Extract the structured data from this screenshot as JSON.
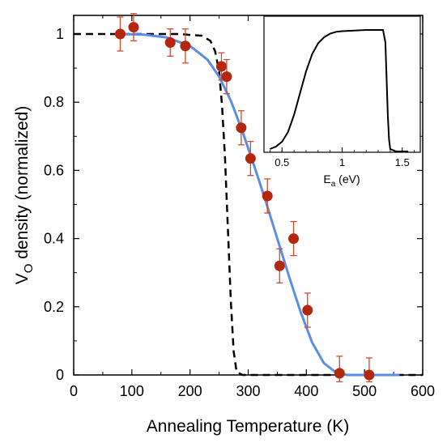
{
  "chart_data": [
    {
      "type": "scatter",
      "xlabel": "Annealing Temperature (K)",
      "ylabel": "density (normalized)",
      "ylabel_symbol": "V",
      "ylabel_subscript": "O",
      "xlim": [
        0,
        600
      ],
      "ylim": [
        0,
        1.05
      ],
      "xticks": [
        "0",
        "100",
        "200",
        "300",
        "400",
        "500",
        "600"
      ],
      "yticks": [
        "0",
        "0.2",
        "0.4",
        "0.6",
        "0.8",
        "1"
      ],
      "xtick_values": [
        0,
        100,
        200,
        300,
        400,
        500,
        600
      ],
      "ytick_values": [
        0,
        0.2,
        0.4,
        0.6,
        0.8,
        1
      ],
      "grid": false,
      "colors": {
        "points": "#b5260f",
        "error_bars": "#d24a2e",
        "fit_curve": "#5b8ee6",
        "dashed_curve": "#000000"
      },
      "points": [
        {
          "x": 80,
          "y": 1.0,
          "err": 0.05
        },
        {
          "x": 103,
          "y": 1.02,
          "err": 0.04
        },
        {
          "x": 166,
          "y": 0.975,
          "err": 0.04
        },
        {
          "x": 192,
          "y": 0.965,
          "err": 0.05
        },
        {
          "x": 254,
          "y": 0.905,
          "err": 0.04
        },
        {
          "x": 263,
          "y": 0.875,
          "err": 0.05
        },
        {
          "x": 288,
          "y": 0.725,
          "err": 0.05
        },
        {
          "x": 304,
          "y": 0.635,
          "err": 0.05
        },
        {
          "x": 333,
          "y": 0.525,
          "err": 0.05
        },
        {
          "x": 354,
          "y": 0.32,
          "err": 0.05
        },
        {
          "x": 378,
          "y": 0.4,
          "err": 0.05
        },
        {
          "x": 402,
          "y": 0.19,
          "err": 0.05
        },
        {
          "x": 457,
          "y": 0.005,
          "err": 0.05
        },
        {
          "x": 508,
          "y": 0.0,
          "err": 0.05
        }
      ],
      "fit_curve": {
        "x": [
          80,
          120,
          160,
          200,
          230,
          250,
          270,
          290,
          310,
          330,
          350,
          370,
          390,
          410,
          430,
          450,
          470,
          500,
          530,
          560
        ],
        "y": [
          1.0,
          0.998,
          0.99,
          0.965,
          0.925,
          0.875,
          0.805,
          0.715,
          0.615,
          0.51,
          0.4,
          0.29,
          0.185,
          0.095,
          0.035,
          0.008,
          0.0,
          0.0,
          0.0,
          0.0
        ]
      },
      "dashed_curve": {
        "x": [
          0,
          180,
          220,
          235,
          243,
          250,
          255,
          260,
          265,
          270,
          275,
          280,
          290,
          400,
          600
        ],
        "y": [
          1.0,
          1.0,
          0.995,
          0.98,
          0.95,
          0.89,
          0.79,
          0.64,
          0.43,
          0.22,
          0.07,
          0.01,
          0.0,
          0.0,
          0.0
        ]
      }
    },
    {
      "type": "line",
      "xlabel_symbol": "E",
      "xlabel_subscript": "a",
      "xlabel_unit": "(eV)",
      "xlim": [
        0.35,
        1.65
      ],
      "ylim": [
        0,
        1.05
      ],
      "xticks": [
        "0.5",
        "1",
        "1.5"
      ],
      "xtick_values": [
        0.5,
        1.0,
        1.5
      ],
      "grid": false,
      "colors": {
        "line": "#000000"
      },
      "curve": {
        "x": [
          0.4,
          0.45,
          0.5,
          0.55,
          0.6,
          0.65,
          0.7,
          0.75,
          0.8,
          0.85,
          0.9,
          0.95,
          1.0,
          1.1,
          1.2,
          1.3,
          1.34,
          1.36,
          1.37,
          1.38,
          1.39,
          1.4,
          1.45,
          1.5,
          1.55
        ],
        "y": [
          0.02,
          0.04,
          0.08,
          0.16,
          0.3,
          0.48,
          0.66,
          0.8,
          0.89,
          0.94,
          0.97,
          0.985,
          0.99,
          0.995,
          1.0,
          1.0,
          1.0,
          0.9,
          0.6,
          0.3,
          0.1,
          0.02,
          0.0,
          0.0,
          0.0
        ]
      }
    }
  ]
}
